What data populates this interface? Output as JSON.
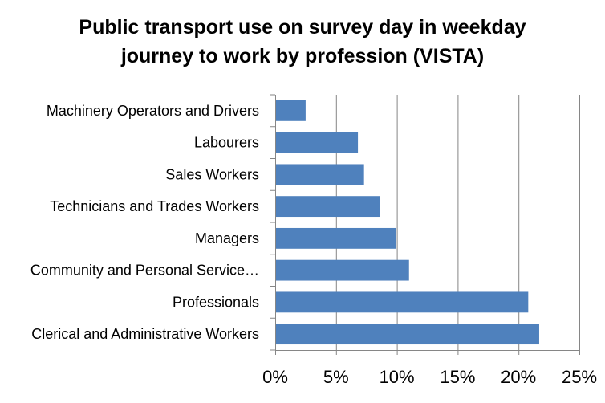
{
  "chart_data": {
    "type": "bar",
    "orientation": "horizontal",
    "title_lines": [
      "Public transport use on survey day in weekday",
      "journey to work by profession (VISTA)"
    ],
    "categories": [
      "Machinery Operators and Drivers",
      "Labourers",
      "Sales Workers",
      "Technicians and Trades Workers",
      "Managers",
      "Community and Personal Service…",
      "Professionals",
      "Clerical and Administrative Workers"
    ],
    "values": [
      2.5,
      6.8,
      7.3,
      8.6,
      9.9,
      11.0,
      20.8,
      21.7
    ],
    "value_unit": "%",
    "xlim": [
      0,
      25
    ],
    "x_ticks": [
      0,
      5,
      10,
      15,
      20,
      25
    ],
    "x_tick_labels": [
      "0%",
      "5%",
      "10%",
      "15%",
      "20%",
      "25%"
    ],
    "grid": "vertical",
    "legend": "none",
    "bar_color": "#4f81bd",
    "grid_color": "#868686"
  }
}
